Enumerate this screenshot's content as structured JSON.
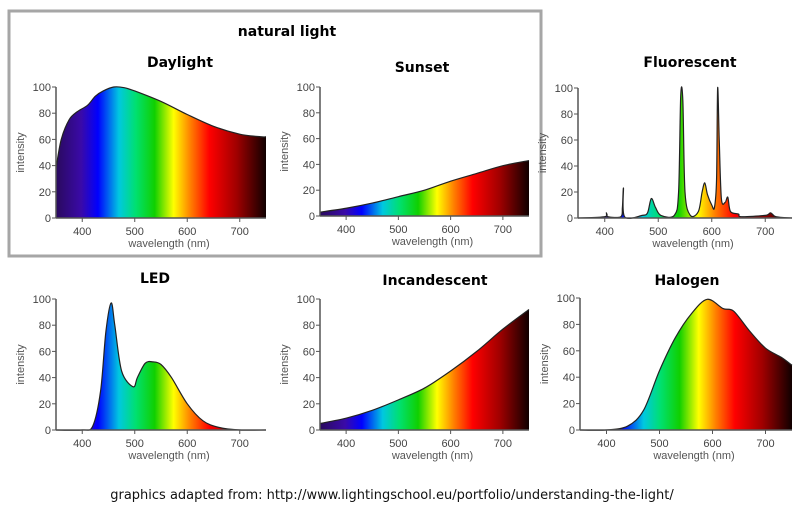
{
  "group_label": "natural light",
  "footer": "graphics adapted from: http://www.lightingschool.eu/portfolio/understanding-the-light/",
  "chart_data": [
    {
      "type": "area",
      "title": "Daylight",
      "xlabel": "wavelength (nm)",
      "ylabel": "intensity",
      "xlim": [
        350,
        750
      ],
      "ylim": [
        0,
        100
      ],
      "xticks": [
        400,
        500,
        600,
        700
      ],
      "yticks": [
        0,
        20,
        40,
        60,
        80,
        100
      ],
      "grid": false,
      "group": "natural light",
      "x": [
        350,
        360,
        375,
        390,
        410,
        425,
        440,
        460,
        480,
        500,
        550,
        600,
        650,
        700,
        740,
        750
      ],
      "y": [
        38,
        60,
        75,
        81,
        86,
        93,
        97,
        100,
        99.5,
        97,
        89,
        79,
        70,
        64,
        62,
        62
      ]
    },
    {
      "type": "area",
      "title": "Sunset",
      "xlabel": "wavelength (nm)",
      "ylabel": "intensity",
      "xlim": [
        350,
        750
      ],
      "ylim": [
        0,
        100
      ],
      "xticks": [
        400,
        500,
        600,
        700
      ],
      "yticks": [
        0,
        20,
        40,
        60,
        80,
        100
      ],
      "grid": false,
      "group": "natural light",
      "x": [
        350,
        400,
        450,
        500,
        550,
        600,
        650,
        700,
        750
      ],
      "y": [
        3,
        6,
        10,
        15,
        20,
        27,
        33,
        39,
        43
      ]
    },
    {
      "type": "area",
      "title": "Fluorescent",
      "xlabel": "wavelength (nm)",
      "ylabel": "intensity",
      "xlim": [
        350,
        750
      ],
      "ylim": [
        0,
        100
      ],
      "xticks": [
        400,
        500,
        600,
        700
      ],
      "yticks": [
        0,
        20,
        40,
        60,
        80,
        100
      ],
      "grid": false,
      "x": [
        350,
        400,
        403,
        406,
        430,
        433,
        435,
        437,
        470,
        480,
        487,
        495,
        505,
        530,
        538,
        542,
        546,
        550,
        560,
        575,
        582,
        587,
        592,
        600,
        605,
        609,
        611,
        614,
        618,
        625,
        630,
        635,
        650,
        655,
        700,
        710,
        720,
        750
      ],
      "y": [
        0,
        1,
        4,
        1,
        1,
        8,
        23,
        1,
        2,
        4,
        15,
        8,
        2,
        2,
        20,
        94,
        90,
        20,
        2,
        5,
        20,
        27,
        18,
        10,
        8,
        30,
        100,
        60,
        15,
        12,
        16,
        5,
        3,
        1,
        2,
        4,
        1,
        0
      ]
    },
    {
      "type": "area",
      "title": "LED",
      "xlabel": "wavelength (nm)",
      "ylabel": "intensity",
      "xlim": [
        350,
        750
      ],
      "ylim": [
        0,
        100
      ],
      "xticks": [
        400,
        500,
        600,
        700
      ],
      "yticks": [
        0,
        20,
        40,
        60,
        80,
        100
      ],
      "grid": false,
      "x": [
        350,
        400,
        420,
        435,
        445,
        455,
        462,
        475,
        497,
        505,
        520,
        535,
        550,
        570,
        600,
        630,
        660,
        700,
        750
      ],
      "y": [
        0,
        0,
        3,
        30,
        75,
        97,
        80,
        45,
        33,
        40,
        51,
        52,
        50,
        40,
        20,
        7,
        2,
        0,
        0
      ]
    },
    {
      "type": "area",
      "title": "Incandescent",
      "xlabel": "wavelength (nm)",
      "ylabel": "intensity",
      "xlim": [
        350,
        750
      ],
      "ylim": [
        0,
        100
      ],
      "xticks": [
        400,
        500,
        600,
        700
      ],
      "yticks": [
        0,
        20,
        40,
        60,
        80,
        100
      ],
      "grid": false,
      "x": [
        350,
        400,
        450,
        500,
        550,
        600,
        650,
        700,
        750
      ],
      "y": [
        5,
        9,
        15,
        23,
        32,
        45,
        60,
        77,
        92
      ]
    },
    {
      "type": "area",
      "title": "Halogen",
      "xlabel": "wavelength (nm)",
      "ylabel": "intensity",
      "xlim": [
        350,
        750
      ],
      "ylim": [
        0,
        100
      ],
      "xticks": [
        400,
        500,
        600,
        700
      ],
      "yticks": [
        0,
        20,
        40,
        60,
        80,
        100
      ],
      "grid": false,
      "x": [
        350,
        400,
        440,
        470,
        500,
        530,
        560,
        590,
        620,
        640,
        670,
        700,
        730,
        750
      ],
      "y": [
        0,
        0,
        3,
        15,
        45,
        70,
        88,
        99,
        92,
        90,
        75,
        62,
        55,
        49
      ]
    }
  ],
  "colors": {
    "group_border": "#a6a6a6",
    "axis": "#555555",
    "curve": "#222222",
    "spectrum": [
      [
        "0",
        "#2a0a5e"
      ],
      [
        "0.12",
        "#3a0aa8"
      ],
      [
        "0.2",
        "#0000ff"
      ],
      [
        "0.3",
        "#00c8e0"
      ],
      [
        "0.38",
        "#00e070"
      ],
      [
        "0.47",
        "#10d000"
      ],
      [
        "0.56",
        "#ffff00"
      ],
      [
        "0.64",
        "#ff8000"
      ],
      [
        "0.73",
        "#ff0000"
      ],
      [
        "0.86",
        "#a00000"
      ],
      [
        "1",
        "#100000"
      ]
    ]
  }
}
